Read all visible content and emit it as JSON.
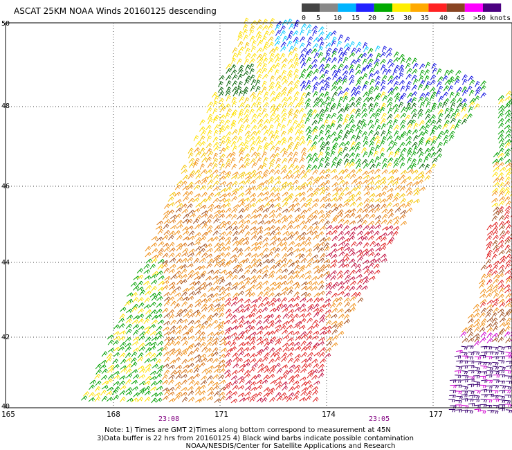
{
  "title": "ASCAT 25KM NOAA Winds 20160125 descending",
  "legend": {
    "labels": [
      "0",
      "5",
      "10",
      "15",
      "20",
      "25",
      "30",
      "35",
      "40",
      "45",
      ">50 knots"
    ],
    "colors": [
      "#444444",
      "#888888",
      "#00b4ff",
      "#2222ff",
      "#00aa00",
      "#ffee00",
      "#ffaa00",
      "#ff2222",
      "#884422",
      "#ff00ff",
      "#4b0080"
    ]
  },
  "latitude_labels": [
    "50",
    "48",
    "46",
    "44",
    "42",
    "40"
  ],
  "longitude_labels": [
    "165",
    "168",
    "171",
    "174",
    "177"
  ],
  "time_labels": [
    "23:08",
    "23:05"
  ],
  "notes": {
    "line1": "Note: 1) Times are GMT 2)Times along bottom correspond to measurement at 45N",
    "line2": "3)Data buffer is 22 hrs from 20160125 4) Black wind barbs indicate possible contamination",
    "line3": "NOAA/NESDIS/Center for Satellite Applications and Research"
  },
  "barb_colors": {
    "cyan": "#00c8ff",
    "blue": "#1010e0",
    "green": "#00a000",
    "darkgreen": "#006000",
    "yellow": "#ffe000",
    "gold": "#f5c400",
    "orange": "#f09018",
    "darkorange": "#d87010",
    "red": "#e02020",
    "crimson": "#c01040",
    "brown": "#a05020",
    "magenta": "#d000d0",
    "purple": "#3a0070",
    "black": "#000000"
  }
}
